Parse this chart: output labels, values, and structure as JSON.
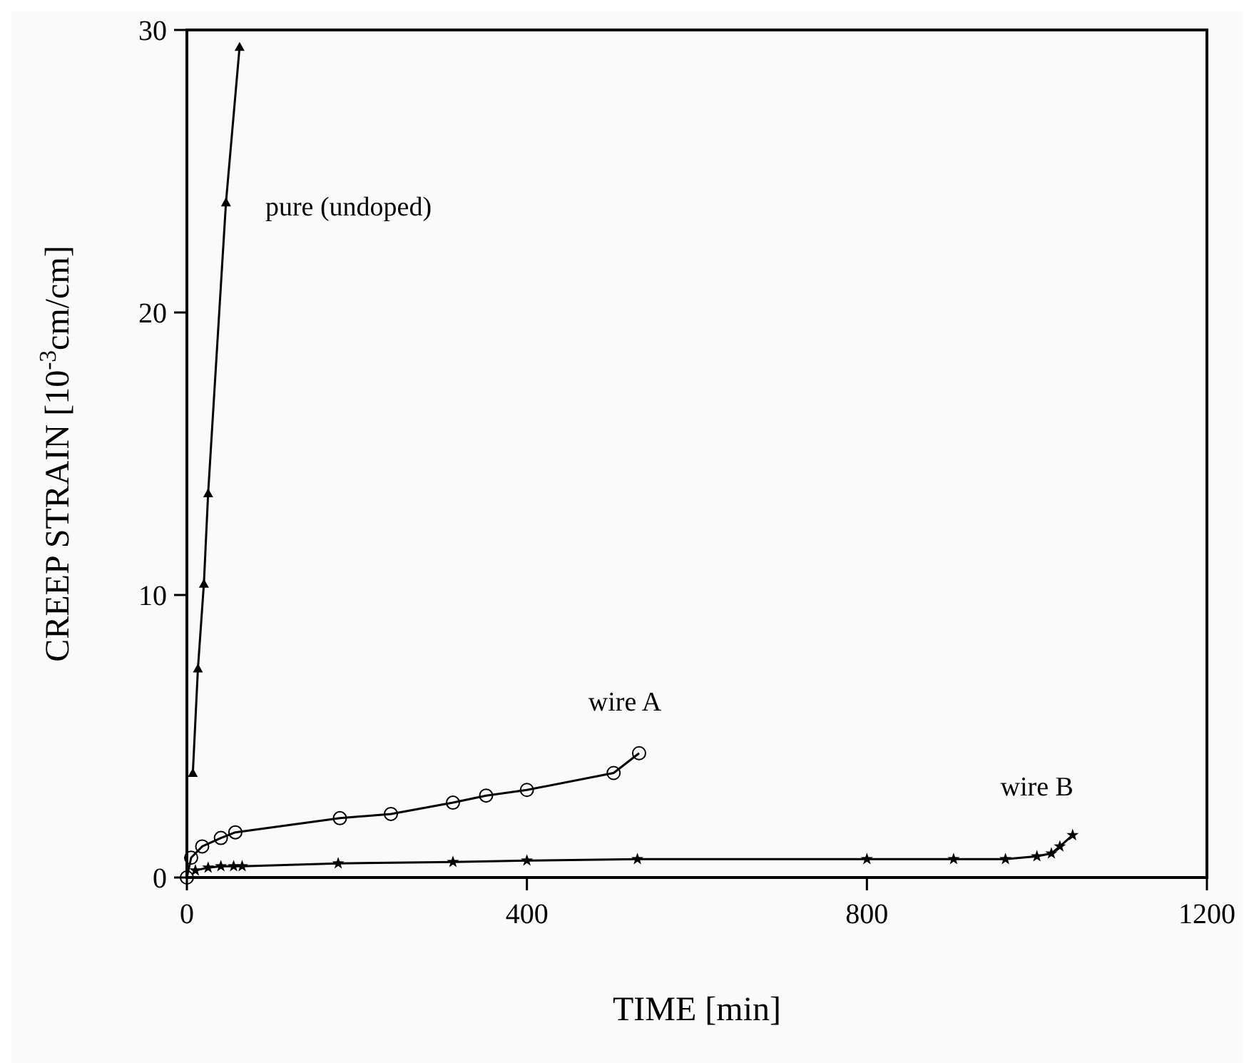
{
  "chart_data": {
    "type": "line",
    "xlabel": "TIME [min]",
    "ylabel": "CREEP STRAIN [10$^{-3}$cm/cm]",
    "xlim": [
      0,
      1200
    ],
    "xticks": [
      0,
      400,
      800,
      1200
    ],
    "ylim": [
      0,
      30
    ],
    "yticks": [
      0,
      10,
      20,
      30
    ],
    "grid": false,
    "legend": false,
    "line_style": "solid",
    "series": [
      {
        "name": "pure (undoped)",
        "color": "#000000",
        "marker": "triangle",
        "x": [
          7,
          13,
          20,
          25,
          46,
          62
        ],
        "values": [
          3.7,
          7.4,
          10.4,
          13.6,
          23.9,
          29.4
        ]
      },
      {
        "name": "wire A",
        "color": "#000000",
        "marker": "circle",
        "x": [
          0,
          5,
          18,
          40,
          57,
          180,
          240,
          313,
          352,
          400,
          502,
          532
        ],
        "values": [
          0,
          0.7,
          1.1,
          1.4,
          1.6,
          2.1,
          2.25,
          2.65,
          2.9,
          3.1,
          3.7,
          4.4
        ]
      },
      {
        "name": "wire B",
        "color": "#000000",
        "marker": "star",
        "x": [
          10,
          25,
          40,
          55,
          65,
          178,
          313,
          400,
          530,
          800,
          902,
          963,
          1000,
          1017,
          1027,
          1042
        ],
        "values": [
          0.25,
          0.35,
          0.4,
          0.4,
          0.4,
          0.5,
          0.55,
          0.6,
          0.65,
          0.65,
          0.65,
          0.65,
          0.75,
          0.85,
          1.1,
          1.5
        ]
      }
    ]
  }
}
